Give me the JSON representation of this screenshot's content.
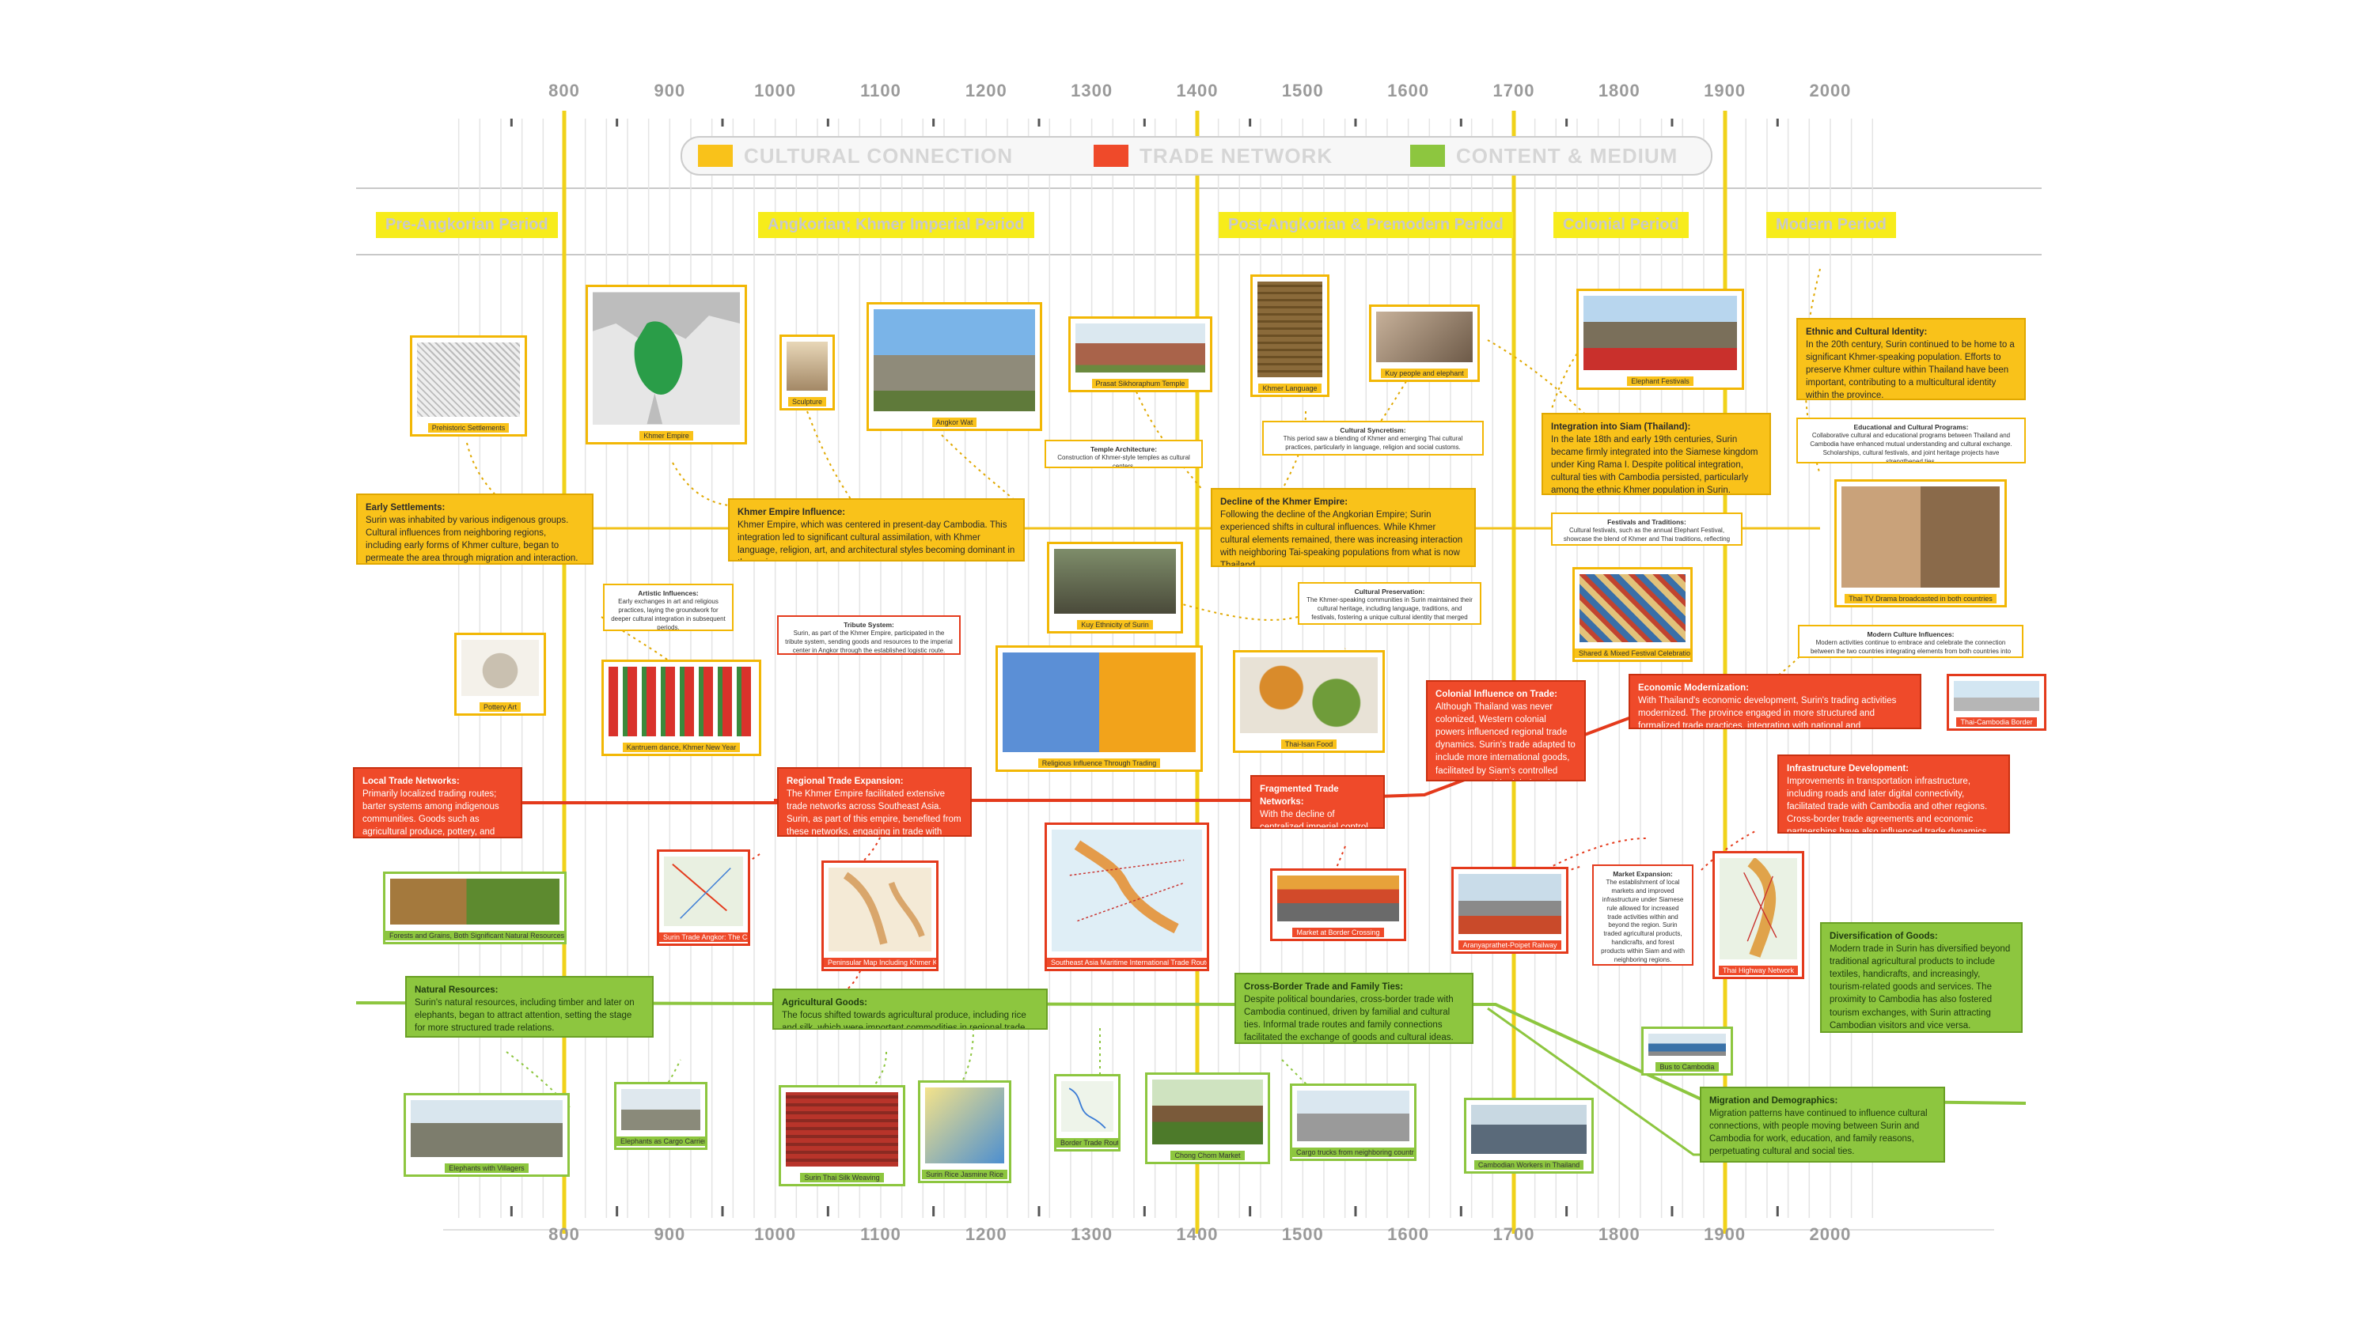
{
  "years": [
    "800",
    "900",
    "1000",
    "1100",
    "1200",
    "1300",
    "1400",
    "1500",
    "1600",
    "1700",
    "1800",
    "1900",
    "2000"
  ],
  "legend": [
    {
      "label": "CULTURAL CONNECTION",
      "color": "#f9c21a"
    },
    {
      "label": "TRADE NETWORK",
      "color": "#ef4a2a"
    },
    {
      "label": "CONTENT & MEDIUM",
      "color": "#8dc63f"
    }
  ],
  "periods": {
    "p1": "Pre-Angkorian Period",
    "p2": "Angkorian; Khmer Imperial Period",
    "p3": "Post-Angkorian & Premodern Period",
    "p4": "Colonial Period",
    "p5": "Modern Period"
  },
  "cultural": {
    "early": {
      "title": "Early Settlements:",
      "text": "Surin was inhabited by various indigenous groups. Cultural influences from neighboring regions, including early forms of Khmer culture, began to permeate the area through migration and interaction."
    },
    "khmer": {
      "title": "Khmer Empire Influence:",
      "text": "Khmer Empire, which was centered in present-day Cambodia. This integration led to significant cultural assimilation, with Khmer language, religion, art, and architectural styles becoming dominant in the region."
    },
    "decline": {
      "title": "Decline of the Khmer Empire:",
      "text": "Following the decline of the Angkorian Empire; Surin experienced shifts in cultural influences. While Khmer cultural elements remained, there was increasing interaction with neighboring Tai-speaking populations from what is now Thailand."
    },
    "integration": {
      "title": "Integration into Siam (Thailand):",
      "text": "In the late 18th and early 19th centuries, Surin became firmly integrated into the Siamese kingdom under King Rama I. Despite political integration, cultural ties with Cambodia persisted, particularly among the ethnic Khmer population in Surin."
    },
    "ethnic": {
      "title": "Ethnic and Cultural Identity:",
      "text": "In the 20th century, Surin continued to be home to a significant Khmer-speaking population. Efforts to preserve Khmer culture within Thailand have been important, contributing to a multicultural identity within the province."
    }
  },
  "notes": {
    "artistic": {
      "title": "Artistic Influences:",
      "text": "Early exchanges in art and religious practices, laying the groundwork for deeper cultural integration in subsequent periods."
    },
    "temple": {
      "title": "Temple Architecture:",
      "text": "Construction of Khmer-style temples as cultural centers."
    },
    "syncretism": {
      "title": "Cultural Syncretism:",
      "text": "This period saw a blending of Khmer and emerging Thai cultural practices, particularly in language, religion and social customs."
    },
    "preservation": {
      "title": "Cultural Preservation:",
      "text": "The Khmer-speaking communities in Surin maintained their cultural heritage, including language, traditions, and festivals, fostering a unique cultural identity that merged Thai and Cambodian influences."
    },
    "festivals": {
      "title": "Festivals and Traditions:",
      "text": "Cultural festivals, such as the annual Elephant Festival, showcase the blend of Khmer and Thai traditions, reflecting the province's unique heritage."
    },
    "education": {
      "title": "Educational and Cultural Programs:",
      "text": "Collaborative cultural and educational programs between Thailand and Cambodia have enhanced mutual understanding and cultural exchange. Scholarships, cultural festivals, and joint heritage projects have strengthened ties."
    },
    "modern_culture": {
      "title": "Modern Culture Influences:",
      "text": "Modern activities continue to embrace and celebrate the connection between the two countries integrating elements from both countries into everyday life."
    },
    "tribute": {
      "title": "Tribute System:",
      "text": "Surin, as part of the Khmer Empire, participated in the tribute system, sending goods and resources to the imperial center in Angkor through the established logistic route."
    },
    "market": {
      "title": "Market Expansion:",
      "text": "The establishment of local markets and improved infrastructure under Siamese rule allowed for increased trade activities within and beyond the region. Surin traded agricultural products, handicrafts, and forest products within Siam and with neighboring regions."
    }
  },
  "trade": {
    "local": {
      "title": "Local Trade Networks:",
      "text": "Primarily localized trading routes; barter systems among indigenous communities. Goods such as agricultural produce, pottery, and handcrafted items were commonly exchanged."
    },
    "regional": {
      "title": "Regional Trade Expansion:",
      "text": "The Khmer Empire facilitated extensive trade networks across Southeast Asia. Surin, as part of this empire, benefited from these networks, engaging in trade with neighboring regions"
    },
    "fragmented": {
      "title": "Fragmented Trade Networks:",
      "text": "With the decline of centralized imperial control, trade became more localized and fragmented."
    },
    "colonial": {
      "title": "Colonial Influence on Trade:",
      "text": "Although Thailand was never colonized, Western colonial powers influenced regional trade dynamics. Surin's trade adapted to include more international goods, facilitated by Siam's controlled engagement with global trade networks."
    },
    "economic": {
      "title": "Economic Modernization:",
      "text": "With Thailand's economic development, Surin's trading activities modernized. The province engaged in more structured and formalized trade practices, integrating with national and international markets."
    },
    "infra": {
      "title": "Infrastructure Development:",
      "text": "Improvements in transportation infrastructure, including roads and later digital connectivity, facilitated trade with Cambodia and other regions. Cross-border trade agreements and economic partnerships have also influenced trade dynamics."
    }
  },
  "content": {
    "natural": {
      "title": "Natural Resources:",
      "text": "Surin's natural resources, including timber and later on elephants, began to attract attention, setting the stage for more structured trade relations."
    },
    "agri": {
      "title": "Agricultural Goods:",
      "text": "The focus shifted towards agricultural produce, including rice and silk, which were important commodities in regional trade"
    },
    "cross": {
      "title": "Cross-Border Trade and Family Ties:",
      "text": "Despite political boundaries, cross-border trade with Cambodia continued, driven by familial and cultural ties. Informal trade routes and family connections facilitated the exchange of goods and cultural ideas."
    },
    "diverse": {
      "title": "Diversification of Goods:",
      "text": "Modern trade in Surin has diversified beyond traditional agricultural products to include textiles, handicrafts, and increasingly, tourism-related goods and services. The proximity to Cambodia has also fostered tourism exchanges, with Surin attracting Cambodian visitors and vice versa."
    },
    "migration": {
      "title": "Migration and Demographics:",
      "text": "Migration patterns have continued to influence cultural connections, with people moving between Surin and Cambodia for work, education, and family reasons, perpetuating cultural and social ties."
    }
  },
  "images": {
    "prehistoric": "Prehistoric Settlements",
    "khmer_empire": "Khmer Empire",
    "sculpture": "Sculpture",
    "angkor": "Angkor Wat",
    "prasat": "Prasat Sikhoraphum Temple",
    "khmer_lang": "Khmer Language",
    "kuy_mural": "Kuy people and elephant",
    "elephant_fest": "Elephant Festivals",
    "pottery": "Pottery Art",
    "dance": "Kantruem dance, Khmer New Year",
    "kuy_ethnicity": "Kuy Ethnicity of Surin",
    "religious": "Religious Influence Through Trading",
    "thai_food": "Thai-Isan Food",
    "shared_festival": "Shared & Mixed Festival Celebration",
    "thai_drama": "Thai TV Drama broadcasted in both countries",
    "thai_cambodia": "Thai-Cambodia Border",
    "forest": "Forests and Grains, Both Significant Natural Resources",
    "surin_map": "Surin Trade Angkor: The Capital of Khmer Empire",
    "peninsula": "Peninsular Map Including Khmer Kingdoms",
    "sea_routes": "Southeast Asia Maritime International Trade Routes",
    "border_crossing": "Market at Border Crossing",
    "railway": "Aranyaprathet-Poipet Railway",
    "highway": "Thai Highway Network",
    "elephants": "Elephants with Villagers",
    "elephant_traders": "Elephants as Cargo Carriers",
    "silk_weaving": "Surin Thai Silk Weaving",
    "rice": "Surin Rice Jasmine Rice",
    "route_map": "Border Trade Routes",
    "market_sign": "Chong Chom Market",
    "border_market": "Cargo trucks from neighboring countries",
    "cambodian_workers": "Cambodian Workers in Thailand",
    "bus": "Bus to Cambodia"
  }
}
